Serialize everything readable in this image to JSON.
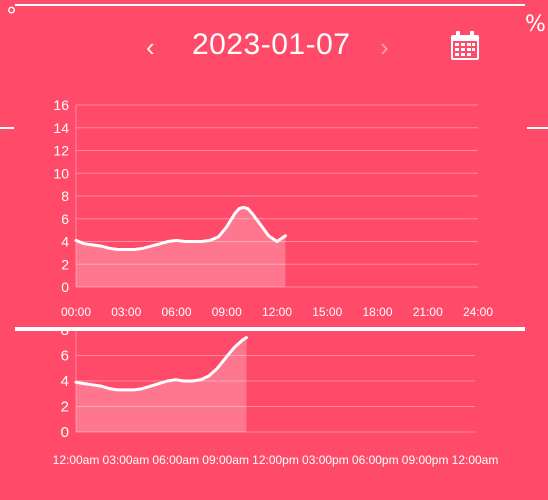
{
  "header": {
    "date": "2023-01-07",
    "prev_glyph": "‹",
    "next_glyph": "›",
    "calendar_icon": "calendar-icon",
    "corner_fragment": "%"
  },
  "colors": {
    "background": "#ff4a6a",
    "line": "#ffffff",
    "area": "rgba(255,255,255,0.25)",
    "grid": "rgba(255,255,255,0.35)"
  },
  "chart_data": [
    {
      "type": "area",
      "x_ticks": [
        "00:00",
        "03:00",
        "06:00",
        "09:00",
        "12:00",
        "15:00",
        "18:00",
        "21:00",
        "24:00"
      ],
      "y_ticks": [
        "0",
        "2",
        "4",
        "6",
        "8",
        "10",
        "12",
        "14",
        "16"
      ],
      "ylim": [
        0,
        16
      ],
      "xlim": [
        0,
        24
      ],
      "grid": true,
      "x": [
        0,
        0.5,
        1,
        1.5,
        2,
        2.5,
        3,
        3.5,
        4,
        4.5,
        5,
        5.5,
        6,
        6.5,
        7,
        7.5,
        8,
        8.5,
        9,
        9.5,
        9.75,
        10,
        10.25,
        10.5,
        11,
        11.5,
        12,
        12.5
      ],
      "values": [
        4.1,
        3.8,
        3.7,
        3.6,
        3.4,
        3.3,
        3.3,
        3.3,
        3.4,
        3.6,
        3.8,
        4.0,
        4.1,
        4.0,
        4.0,
        4.0,
        4.1,
        4.4,
        5.3,
        6.5,
        6.9,
        7.0,
        6.9,
        6.5,
        5.5,
        4.5,
        4.0,
        4.5
      ]
    },
    {
      "type": "area",
      "x_ticks": [
        "12:00am",
        "03:00am",
        "06:00am",
        "09:00am",
        "12:00pm",
        "03:00pm",
        "06:00pm",
        "09:00pm",
        "12:00am"
      ],
      "y_ticks": [
        "0",
        "2",
        "4",
        "6",
        "8"
      ],
      "ylim": [
        0,
        8
      ],
      "xlim": [
        0,
        24
      ],
      "grid": true,
      "x": [
        0,
        0.5,
        1,
        1.5,
        2,
        2.5,
        3,
        3.5,
        4,
        4.5,
        5,
        5.5,
        6,
        6.5,
        7,
        7.5,
        8,
        8.5,
        9,
        9.5,
        10,
        10.25
      ],
      "values": [
        3.9,
        3.8,
        3.7,
        3.6,
        3.4,
        3.3,
        3.3,
        3.3,
        3.4,
        3.6,
        3.8,
        4.0,
        4.1,
        4.0,
        4.0,
        4.1,
        4.4,
        5.0,
        5.8,
        6.6,
        7.2,
        7.4
      ]
    }
  ]
}
